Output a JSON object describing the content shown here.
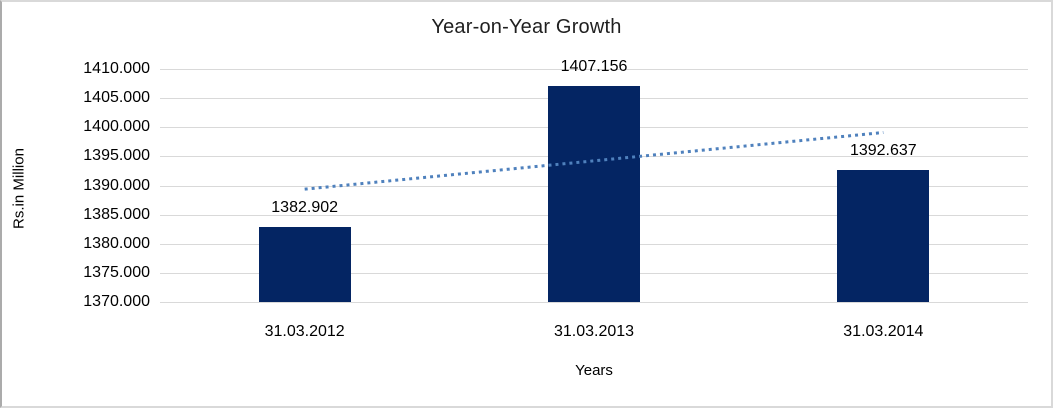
{
  "chart_data": {
    "type": "bar",
    "title": "Year-on-Year Growth",
    "xlabel": "Years",
    "ylabel": "Rs.in Million",
    "categories": [
      "31.03.2012",
      "31.03.2013",
      "31.03.2014"
    ],
    "values": [
      1382.902,
      1407.156,
      1392.637
    ],
    "data_labels": [
      "1382.902",
      "1407.156",
      "1392.637"
    ],
    "ylim": [
      1370,
      1410
    ],
    "ytick_step": 5,
    "ytick_labels": [
      "1410.000",
      "1405.000",
      "1400.000",
      "1395.000",
      "1390.000",
      "1385.000",
      "1380.000",
      "1375.000",
      "1370.000"
    ],
    "grid": true,
    "legend": "none",
    "bar_color": "#042563",
    "gridline_color": "#d9d9d9",
    "trendline": {
      "type": "linear",
      "style": "dotted",
      "color": "#4F81BD",
      "endpoint_values": [
        1389.37,
        1399.1
      ]
    }
  }
}
